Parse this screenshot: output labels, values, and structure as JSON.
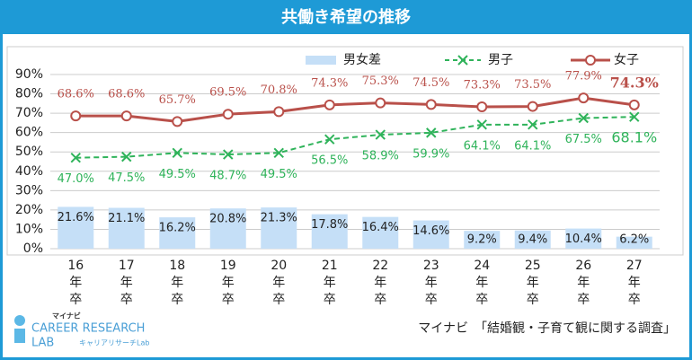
{
  "chart_data": {
    "type": "combo",
    "title": "共働き希望の推移",
    "categories": [
      "16年卒",
      "17年卒",
      "18年卒",
      "19年卒",
      "20年卒",
      "21年卒",
      "22年卒",
      "23年卒",
      "24年卒",
      "25年卒",
      "26年卒",
      "27年卒"
    ],
    "series": [
      {
        "name": "男女差",
        "type": "bar",
        "color": "#c5dff7",
        "values": [
          21.6,
          21.1,
          16.2,
          20.8,
          21.3,
          17.8,
          16.4,
          14.6,
          9.2,
          9.4,
          10.4,
          6.2
        ],
        "value_labels": [
          "21.6%",
          "21.1%",
          "16.2%",
          "20.8%",
          "21.3%",
          "17.8%",
          "16.4%",
          "14.6%",
          "9.2%",
          "9.4%",
          "10.4%",
          "6.2%"
        ]
      },
      {
        "name": "男子",
        "type": "line",
        "color": "#2fb35a",
        "values": [
          47.0,
          47.5,
          49.5,
          48.7,
          49.5,
          56.5,
          58.9,
          59.9,
          64.1,
          64.1,
          67.5,
          68.1
        ],
        "value_labels": [
          "47.0%",
          "47.5%",
          "49.5%",
          "48.7%",
          "49.5%",
          "56.5%",
          "58.9%",
          "59.9%",
          "64.1%",
          "64.1%",
          "67.5%",
          "68.1%"
        ]
      },
      {
        "name": "女子",
        "type": "line",
        "color": "#b9504a",
        "values": [
          68.6,
          68.6,
          65.7,
          69.5,
          70.8,
          74.3,
          75.3,
          74.5,
          73.3,
          73.5,
          77.9,
          74.3
        ],
        "value_labels": [
          "68.6%",
          "68.6%",
          "65.7%",
          "69.5%",
          "70.8%",
          "74.3%",
          "75.3%",
          "74.5%",
          "73.3%",
          "73.5%",
          "77.9%",
          "74.3%"
        ]
      }
    ],
    "ylim": [
      0,
      90
    ],
    "yticks": [
      {
        "value": 0,
        "label": "0%"
      },
      {
        "value": 10,
        "label": "10%"
      },
      {
        "value": 20,
        "label": "20%"
      },
      {
        "value": 30,
        "label": "30%"
      },
      {
        "value": 40,
        "label": "40%"
      },
      {
        "value": 50,
        "label": "50%"
      },
      {
        "value": 60,
        "label": "60%"
      },
      {
        "value": 70,
        "label": "70%"
      },
      {
        "value": 80,
        "label": "80%"
      },
      {
        "value": 90,
        "label": "90%"
      }
    ],
    "grid": true
  },
  "source": "マイナビ　「結婚観・子育て観に関する調査」",
  "logo": {
    "brand": "マイナビ",
    "name": "CAREER RESEARCH",
    "lab": "LAB",
    "sub": "キャリアリサーチLab"
  }
}
